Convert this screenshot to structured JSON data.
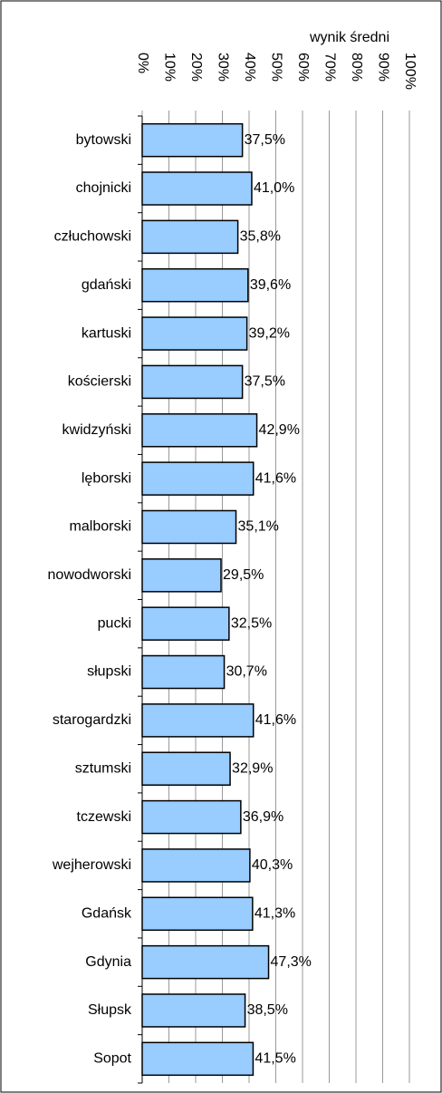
{
  "chart_data": {
    "type": "bar",
    "orientation": "horizontal",
    "title": "wynik średni",
    "categories": [
      "bytowski",
      "chojnicki",
      "człuchowski",
      "gdański",
      "kartuski",
      "kościerski",
      "kwidzyński",
      "lęborski",
      "malborski",
      "nowodworski",
      "pucki",
      "słupski",
      "starogardzki",
      "sztumski",
      "tczewski",
      "wejherowski",
      "Gdańsk",
      "Gdynia",
      "Słupsk",
      "Sopot"
    ],
    "values": [
      37.5,
      41.0,
      35.8,
      39.6,
      39.2,
      37.5,
      42.9,
      41.6,
      35.1,
      29.5,
      32.5,
      30.7,
      41.6,
      32.9,
      36.9,
      40.3,
      41.3,
      47.3,
      38.5,
      41.5
    ],
    "value_labels": [
      "37,5%",
      "41,0%",
      "35,8%",
      "39,6%",
      "39,2%",
      "37,5%",
      "42,9%",
      "41,6%",
      "35,1%",
      "29,5%",
      "32,5%",
      "30,7%",
      "41,6%",
      "32,9%",
      "36,9%",
      "40,3%",
      "41,3%",
      "47,3%",
      "38,5%",
      "41,5%"
    ],
    "color": "#99ccff",
    "xlim": [
      0,
      100
    ],
    "xticks": [
      {
        "value": 0,
        "label": "0%"
      },
      {
        "value": 10,
        "label": "10%"
      },
      {
        "value": 20,
        "label": "20%"
      },
      {
        "value": 30,
        "label": "30%"
      },
      {
        "value": 40,
        "label": "40%"
      },
      {
        "value": 50,
        "label": "50%"
      },
      {
        "value": 60,
        "label": "60%"
      },
      {
        "value": 70,
        "label": "70%"
      },
      {
        "value": 80,
        "label": "80%"
      },
      {
        "value": 90,
        "label": "90%"
      },
      {
        "value": 100,
        "label": "100%"
      }
    ],
    "grid": true
  }
}
